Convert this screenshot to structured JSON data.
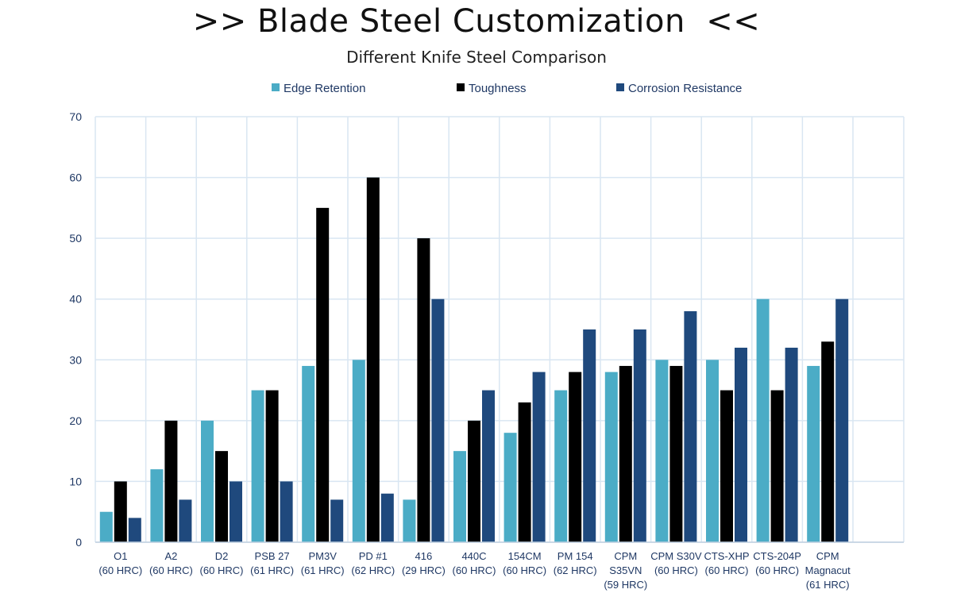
{
  "title": ">> Blade Steel Customization  <<",
  "subtitle": "Different Knife Steel Comparison",
  "chart_data": {
    "type": "bar",
    "categories": [
      [
        "O1",
        "(60 HRC)"
      ],
      [
        "A2",
        "(60 HRC)"
      ],
      [
        "D2",
        "(60 HRC)"
      ],
      [
        "PSB 27",
        "(61 HRC)"
      ],
      [
        "PM3V",
        "(61 HRC)"
      ],
      [
        "PD #1",
        "(62 HRC)"
      ],
      [
        "416",
        "(29 HRC)"
      ],
      [
        "440C",
        "(60 HRC)"
      ],
      [
        "154CM",
        "(60 HRC)"
      ],
      [
        "PM 154",
        "(62 HRC)"
      ],
      [
        "CPM",
        "S35VN",
        "(59 HRC)"
      ],
      [
        "CPM S30V",
        "(60 HRC)"
      ],
      [
        "CTS-XHP",
        "(60 HRC)"
      ],
      [
        "CTS-204P",
        "(60 HRC)"
      ],
      [
        "CPM",
        "Magnacut",
        "(61 HRC)"
      ]
    ],
    "series": [
      {
        "name": "Edge Retention",
        "color": "#4bacc6",
        "values": [
          5,
          12,
          20,
          25,
          29,
          30,
          7,
          15,
          18,
          25,
          28,
          30,
          30,
          40,
          29
        ]
      },
      {
        "name": "Toughness",
        "color": "#000000",
        "values": [
          10,
          20,
          15,
          25,
          55,
          60,
          50,
          20,
          23,
          28,
          29,
          29,
          25,
          25,
          33
        ]
      },
      {
        "name": "Corrosion Resistance",
        "color": "#1f497d",
        "values": [
          4,
          7,
          10,
          10,
          7,
          8,
          40,
          25,
          28,
          35,
          35,
          38,
          32,
          32,
          40
        ]
      }
    ],
    "yticks": [
      0,
      10,
      20,
      30,
      40,
      50,
      60,
      70
    ],
    "ylim": [
      0,
      70
    ],
    "grid": true,
    "legend": "top-center"
  }
}
